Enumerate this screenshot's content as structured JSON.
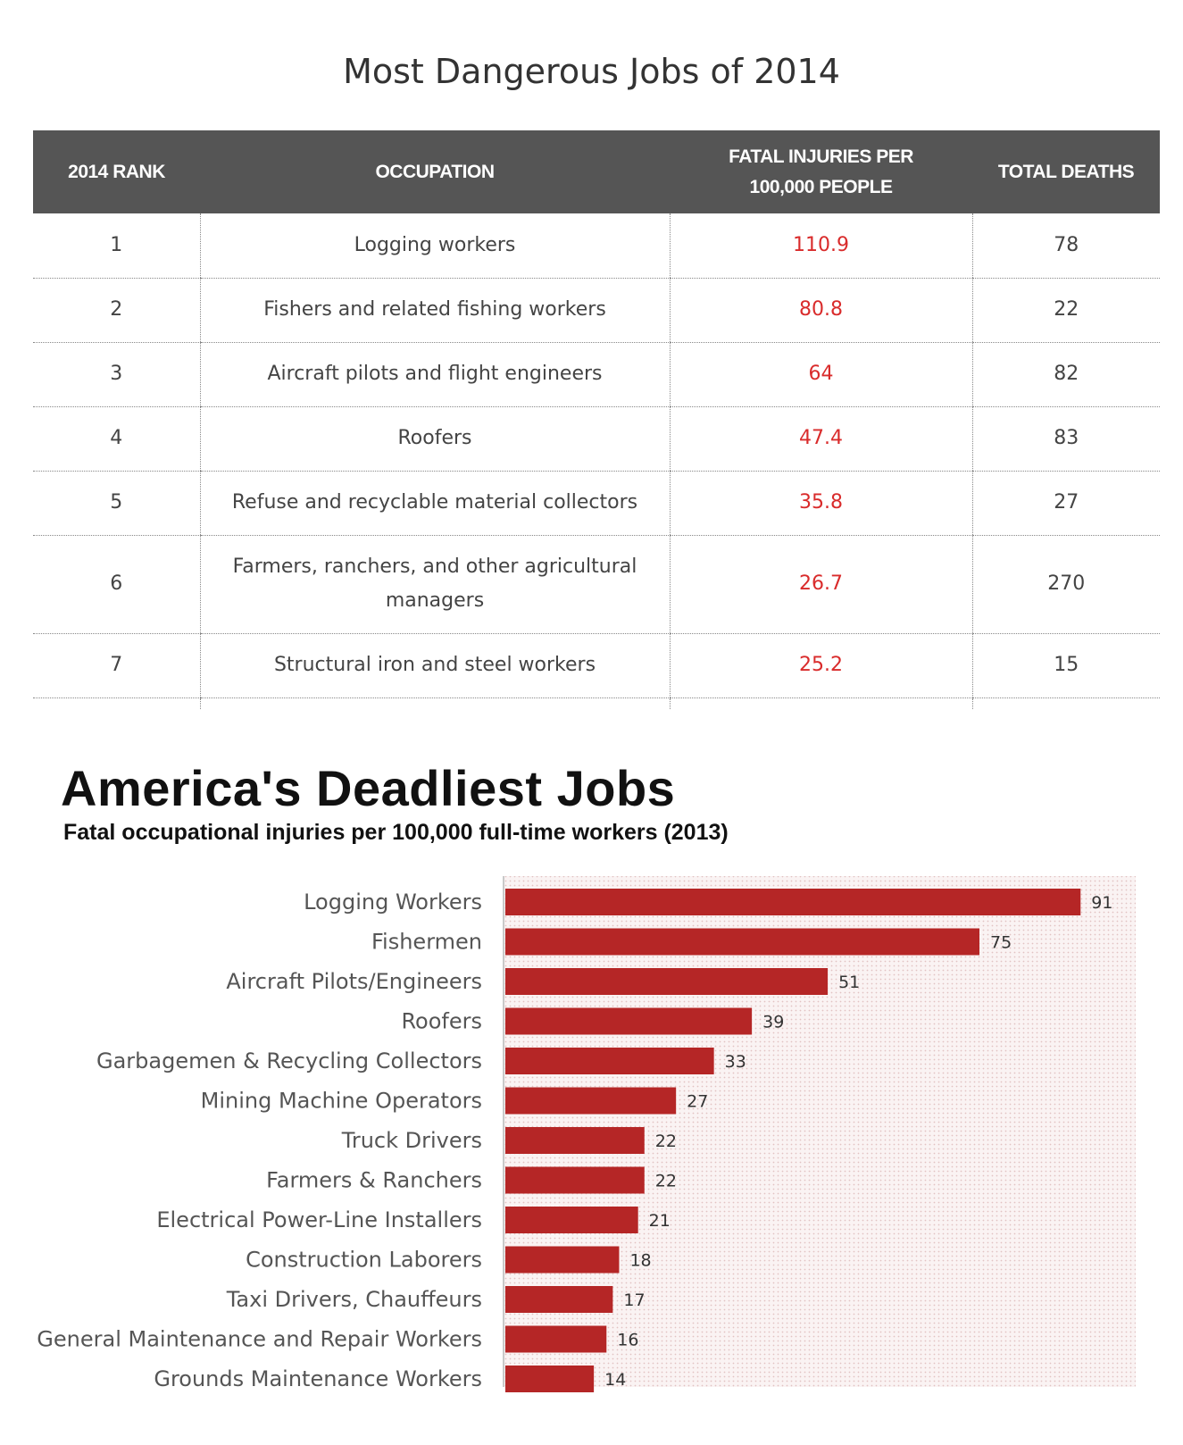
{
  "table": {
    "title": "Most Dangerous Jobs of 2014",
    "headers": {
      "rank": "2014 RANK",
      "occupation": "OCCUPATION",
      "fatal_line1": "FATAL INJURIES PER",
      "fatal_line2": "100,000 PEOPLE",
      "deaths": "TOTAL DEATHS"
    },
    "rows": [
      {
        "rank": "1",
        "occupation": "Logging workers",
        "rate": "110.9",
        "deaths": "78"
      },
      {
        "rank": "2",
        "occupation": "Fishers and related fishing workers",
        "rate": "80.8",
        "deaths": "22"
      },
      {
        "rank": "3",
        "occupation": "Aircraft pilots and flight engineers",
        "rate": "64",
        "deaths": "82"
      },
      {
        "rank": "4",
        "occupation": "Roofers",
        "rate": "47.4",
        "deaths": "83"
      },
      {
        "rank": "5",
        "occupation": "Refuse and recyclable material collectors",
        "rate": "35.8",
        "deaths": "27"
      },
      {
        "rank": "6",
        "occupation_line1": "Farmers, ranchers, and other agricultural",
        "occupation_line2": "managers",
        "rate": "26.7",
        "deaths": "270"
      },
      {
        "rank": "7",
        "occupation": "Structural iron and steel workers",
        "rate": "25.2",
        "deaths": "15"
      }
    ]
  },
  "chart_data": {
    "type": "bar",
    "orientation": "horizontal",
    "title": "America's Deadliest Jobs",
    "subtitle": "Fatal occupational injuries per 100,000 full-time workers (2013)",
    "categories": [
      "Logging Workers",
      "Fishermen",
      "Aircraft Pilots/Engineers",
      "Roofers",
      "Garbagemen & Recycling Collectors",
      "Mining Machine Operators",
      "Truck Drivers",
      "Farmers & Ranchers",
      "Electrical Power-Line Installers",
      "Construction Laborers",
      "Taxi Drivers, Chauffeurs",
      "General Maintenance and Repair Workers",
      "Grounds Maintenance Workers"
    ],
    "values": [
      91,
      75,
      51,
      39,
      33,
      27,
      22,
      22,
      21,
      18,
      17,
      16,
      14
    ],
    "xlim": [
      0,
      100
    ],
    "bar_color": "#b52626",
    "background_color": "#f6ecec"
  }
}
